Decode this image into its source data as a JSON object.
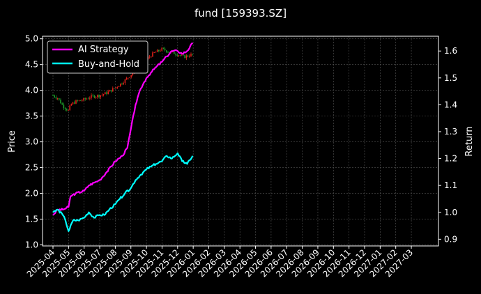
{
  "chart_data": {
    "type": "line",
    "title": "fund [159393.SZ]",
    "ylabel": "Price",
    "y2label": "Return",
    "ylim": [
      0.98,
      5.05
    ],
    "y2lim": [
      0.875,
      1.655
    ],
    "yticks": [
      "1.0",
      "1.5",
      "2.0",
      "2.5",
      "3.0",
      "3.5",
      "4.0",
      "4.5",
      "5.0"
    ],
    "y2ticks": [
      "0.9",
      "1.0",
      "1.1",
      "1.2",
      "1.3",
      "1.4",
      "1.5",
      "1.6"
    ],
    "xticks": [
      "2025-04",
      "2025-05",
      "2025-06",
      "2025-07",
      "2025-08",
      "2025-09",
      "2025-10",
      "2025-11",
      "2025-12",
      "2026-01",
      "2026-02",
      "2026-03",
      "2026-04",
      "2026-05",
      "2026-06",
      "2026-07",
      "2026-08",
      "2026-09",
      "2026-10",
      "2026-11",
      "2026-12",
      "2027-01",
      "2027-02",
      "2027-03"
    ],
    "grid": true,
    "legend_position": "top-left",
    "series": [
      {
        "name": "AI Strategy",
        "axis": "right",
        "color": "#ff00ff",
        "x": [
          "2025-04-01",
          "2025-04-10",
          "2025-04-20",
          "2025-05-01",
          "2025-05-05",
          "2025-05-15",
          "2025-06-01",
          "2025-06-10",
          "2025-06-20",
          "2025-07-01",
          "2025-07-15",
          "2025-08-01",
          "2025-08-15",
          "2025-08-25",
          "2025-09-01",
          "2025-09-10",
          "2025-09-20",
          "2025-10-01",
          "2025-10-10",
          "2025-10-20",
          "2025-11-01",
          "2025-11-10",
          "2025-11-20",
          "2025-12-01",
          "2025-12-10",
          "2025-12-20",
          "2025-12-31"
        ],
        "values": [
          0.99,
          1.01,
          1.01,
          1.02,
          1.06,
          1.07,
          1.08,
          1.1,
          1.11,
          1.12,
          1.15,
          1.19,
          1.21,
          1.24,
          1.31,
          1.4,
          1.46,
          1.5,
          1.52,
          1.54,
          1.56,
          1.58,
          1.6,
          1.6,
          1.59,
          1.6,
          1.63
        ]
      },
      {
        "name": "Buy-and-Hold",
        "axis": "right",
        "color": "#00ffff",
        "x": [
          "2025-04-01",
          "2025-04-10",
          "2025-04-20",
          "2025-04-25",
          "2025-05-01",
          "2025-05-10",
          "2025-05-20",
          "2025-06-01",
          "2025-06-10",
          "2025-06-20",
          "2025-07-01",
          "2025-07-10",
          "2025-07-20",
          "2025-08-01",
          "2025-08-10",
          "2025-08-20",
          "2025-09-01",
          "2025-09-10",
          "2025-09-20",
          "2025-10-01",
          "2025-10-10",
          "2025-10-20",
          "2025-11-01",
          "2025-11-10",
          "2025-11-20",
          "2025-12-01",
          "2025-12-10",
          "2025-12-20",
          "2025-12-31"
        ],
        "values": [
          1.0,
          1.01,
          0.99,
          0.97,
          0.93,
          0.97,
          0.97,
          0.98,
          1.0,
          0.98,
          0.99,
          0.99,
          1.01,
          1.03,
          1.05,
          1.07,
          1.09,
          1.12,
          1.14,
          1.16,
          1.17,
          1.18,
          1.19,
          1.21,
          1.2,
          1.22,
          1.19,
          1.18,
          1.21
        ]
      },
      {
        "name": "",
        "kind": "candlestick",
        "axis": "left",
        "x": [
          "2025-04-01",
          "2025-04-10",
          "2025-04-20",
          "2025-05-01",
          "2025-05-05",
          "2025-05-15",
          "2025-06-01",
          "2025-06-15",
          "2025-07-01",
          "2025-07-15",
          "2025-08-01",
          "2025-08-15",
          "2025-09-01",
          "2025-09-15",
          "2025-10-01",
          "2025-10-15",
          "2025-11-01",
          "2025-11-15",
          "2025-12-01",
          "2025-12-15",
          "2025-12-31"
        ],
        "values": [
          3.9,
          3.85,
          3.7,
          3.6,
          3.72,
          3.78,
          3.82,
          3.88,
          3.9,
          3.95,
          4.05,
          4.15,
          4.3,
          4.45,
          4.6,
          4.72,
          4.8,
          4.75,
          4.7,
          4.65,
          4.7
        ]
      }
    ]
  }
}
